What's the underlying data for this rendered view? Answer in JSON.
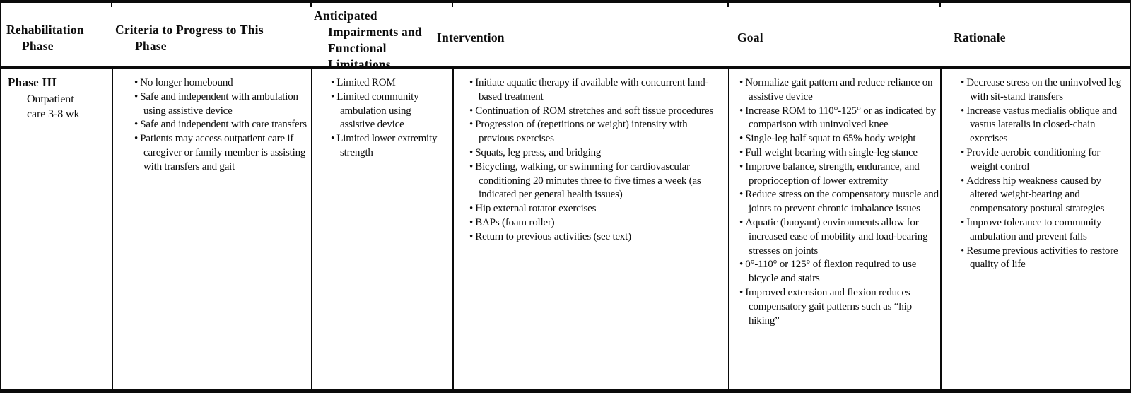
{
  "bullet_glyph": "•",
  "header": {
    "col1": {
      "line1": "Rehabilitation",
      "line2": "Phase"
    },
    "col2": {
      "line1": "Criteria to Progress to This",
      "line2": "Phase"
    },
    "col3": {
      "line1": "Anticipated",
      "line2": "Impairments and Functional Limitations"
    },
    "col4": {
      "line1": "Intervention"
    },
    "col5": {
      "line1": "Goal"
    },
    "col6": {
      "line1": "Rationale"
    }
  },
  "row": {
    "phase": {
      "title": "Phase III",
      "subtitle": "Outpatient care 3-8 wk"
    },
    "criteria": [
      "No longer homebound",
      "Safe and independent with ambulation using assistive device",
      "Safe and independent with care transfers",
      "Patients may access outpatient care if caregiver or family member is assisting with transfers and gait"
    ],
    "impairments": [
      "Limited ROM",
      "Limited community ambulation using assistive device",
      "Limited lower extremity strength"
    ],
    "interventions": [
      "Initiate aquatic therapy if available with concurrent land-based treatment",
      "Continuation of ROM stretches and soft tissue procedures",
      "Progression of (repetitions or weight) intensity with previous exercises",
      "Squats, leg press, and bridging",
      "Bicycling, walking, or swimming for cardiovascular conditioning 20 minutes three to five times a week (as indicated per general health issues)",
      "Hip external rotator exercises",
      "BAPs (foam roller)",
      "Return to previous activities (see text)"
    ],
    "goals": [
      "Normalize gait pattern and reduce reliance on assistive device",
      "Increase ROM to 110°-125° or as indicated by comparison with uninvolved knee",
      "Single-leg half squat to 65% body weight",
      "Full weight bearing with single-leg stance",
      "Improve balance, strength, endurance, and proprioception of lower extremity",
      "Reduce stress on the compensatory muscle and joints to prevent chronic imbalance issues",
      "Aquatic (buoyant) environments allow for increased ease of mobility and load-bearing stresses on joints",
      "0°-110° or 125° of flexion required to use bicycle and stairs",
      "Improved extension and flexion reduces compensatory gait patterns such as “hip hiking”"
    ],
    "rationale": [
      "Decrease stress on the uninvolved leg with sit-stand transfers",
      "Increase vastus medialis oblique and vastus lateralis in closed-chain exercises",
      "Provide aerobic conditioning for weight control",
      "Address hip weakness caused by altered weight-bearing and compensatory postural strategies",
      "Improve tolerance to community ambulation and prevent falls",
      "Resume previous activities to restore quality of life"
    ]
  }
}
